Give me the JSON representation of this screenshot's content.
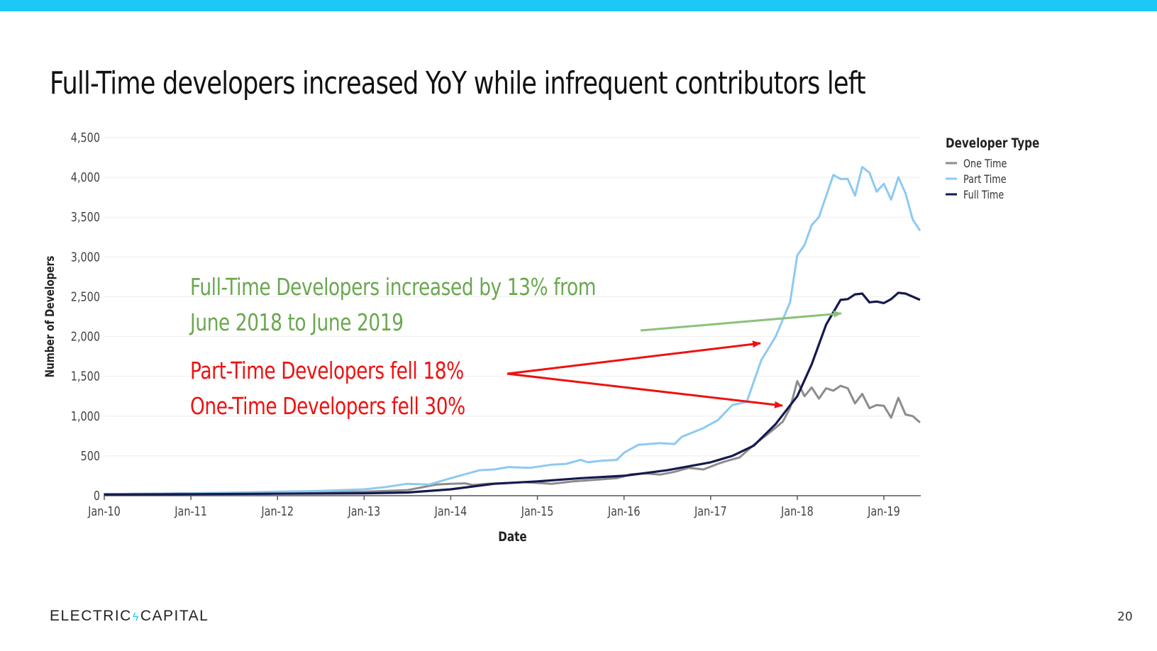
{
  "slide": {
    "title": "Full-Time developers increased YoY while infrequent contributors left",
    "brand": {
      "left": "ELECTRIC",
      "right": "CAPITAL"
    },
    "page_number": "20",
    "accent_color": "#1cc8f6"
  },
  "annotations": {
    "green": {
      "line1": "Full-Time Developers increased by 13% from",
      "line2": "June 2018 to June 2019",
      "color": "#6aa84f"
    },
    "red": {
      "line1": "Part-Time Developers fell 18%",
      "line2": "One-Time Developers fell 30%",
      "color": "#ee1111"
    }
  },
  "chart_data": {
    "type": "line",
    "xlabel": "Date",
    "ylabel": "Number of Developers",
    "xlim": [
      "2010-01",
      "2019-06"
    ],
    "ylim": [
      0,
      4500
    ],
    "y_ticks": [
      "0",
      "500",
      "1,000",
      "1,500",
      "2,000",
      "2,500",
      "3,000",
      "3,500",
      "4,000",
      "4,500"
    ],
    "x_ticks": [
      "Jan-10",
      "Jan-11",
      "Jan-12",
      "Jan-13",
      "Jan-14",
      "Jan-15",
      "Jan-16",
      "Jan-17",
      "Jan-18",
      "Jan-19"
    ],
    "grid": true,
    "legend": {
      "title": "Developer Type",
      "position": "top-right"
    },
    "series": [
      {
        "name": "One Time",
        "color": "#8c8c8c",
        "points": [
          [
            "2010-01",
            20
          ],
          [
            "2011-01",
            30
          ],
          [
            "2012-01",
            40
          ],
          [
            "2013-01",
            50
          ],
          [
            "2013-07",
            70
          ],
          [
            "2013-11",
            140
          ],
          [
            "2014-01",
            150
          ],
          [
            "2014-03",
            155
          ],
          [
            "2014-04",
            135
          ],
          [
            "2014-06",
            150
          ],
          [
            "2014-09",
            160
          ],
          [
            "2014-11",
            170
          ],
          [
            "2015-01",
            160
          ],
          [
            "2015-03",
            150
          ],
          [
            "2015-06",
            180
          ],
          [
            "2015-09",
            200
          ],
          [
            "2015-12",
            220
          ],
          [
            "2016-02",
            270
          ],
          [
            "2016-04",
            280
          ],
          [
            "2016-06",
            265
          ],
          [
            "2016-08",
            300
          ],
          [
            "2016-10",
            350
          ],
          [
            "2016-12",
            330
          ],
          [
            "2017-02",
            400
          ],
          [
            "2017-03",
            430
          ],
          [
            "2017-05",
            480
          ],
          [
            "2017-07",
            640
          ],
          [
            "2017-09",
            780
          ],
          [
            "2017-11",
            930
          ],
          [
            "2017-12",
            1100
          ],
          [
            "2018-01",
            1440
          ],
          [
            "2018-02",
            1250
          ],
          [
            "2018-03",
            1360
          ],
          [
            "2018-04",
            1220
          ],
          [
            "2018-05",
            1350
          ],
          [
            "2018-06",
            1320
          ],
          [
            "2018-07",
            1380
          ],
          [
            "2018-08",
            1350
          ],
          [
            "2018-09",
            1160
          ],
          [
            "2018-10",
            1280
          ],
          [
            "2018-11",
            1100
          ],
          [
            "2018-12",
            1140
          ],
          [
            "2019-01",
            1130
          ],
          [
            "2019-02",
            980
          ],
          [
            "2019-03",
            1230
          ],
          [
            "2019-04",
            1020
          ],
          [
            "2019-05",
            1000
          ],
          [
            "2019-06",
            920
          ]
        ]
      },
      {
        "name": "Part Time",
        "color": "#8ec9f2",
        "points": [
          [
            "2010-01",
            20
          ],
          [
            "2011-01",
            30
          ],
          [
            "2012-01",
            50
          ],
          [
            "2012-07",
            60
          ],
          [
            "2013-01",
            80
          ],
          [
            "2013-04",
            110
          ],
          [
            "2013-07",
            150
          ],
          [
            "2013-10",
            140
          ],
          [
            "2014-01",
            220
          ],
          [
            "2014-03",
            270
          ],
          [
            "2014-05",
            320
          ],
          [
            "2014-07",
            330
          ],
          [
            "2014-09",
            360
          ],
          [
            "2014-12",
            350
          ],
          [
            "2015-03",
            390
          ],
          [
            "2015-05",
            400
          ],
          [
            "2015-07",
            450
          ],
          [
            "2015-08",
            420
          ],
          [
            "2015-10",
            440
          ],
          [
            "2015-12",
            450
          ],
          [
            "2016-01",
            540
          ],
          [
            "2016-03",
            640
          ],
          [
            "2016-06",
            660
          ],
          [
            "2016-08",
            650
          ],
          [
            "2016-09",
            740
          ],
          [
            "2016-12",
            850
          ],
          [
            "2017-02",
            950
          ],
          [
            "2017-04",
            1140
          ],
          [
            "2017-06",
            1180
          ],
          [
            "2017-08",
            1700
          ],
          [
            "2017-10",
            2000
          ],
          [
            "2017-12",
            2430
          ],
          [
            "2018-01",
            3020
          ],
          [
            "2018-02",
            3150
          ],
          [
            "2018-03",
            3400
          ],
          [
            "2018-04",
            3500
          ],
          [
            "2018-06",
            4030
          ],
          [
            "2018-07",
            3980
          ],
          [
            "2018-08",
            3980
          ],
          [
            "2018-09",
            3770
          ],
          [
            "2018-10",
            4130
          ],
          [
            "2018-11",
            4060
          ],
          [
            "2018-12",
            3820
          ],
          [
            "2019-01",
            3920
          ],
          [
            "2019-02",
            3720
          ],
          [
            "2019-03",
            4000
          ],
          [
            "2019-04",
            3800
          ],
          [
            "2019-05",
            3470
          ],
          [
            "2019-06",
            3330
          ]
        ]
      },
      {
        "name": "Full Time",
        "color": "#141a4e",
        "points": [
          [
            "2010-01",
            15
          ],
          [
            "2011-01",
            20
          ],
          [
            "2012-01",
            25
          ],
          [
            "2013-01",
            30
          ],
          [
            "2013-07",
            40
          ],
          [
            "2014-01",
            80
          ],
          [
            "2014-07",
            150
          ],
          [
            "2015-01",
            180
          ],
          [
            "2015-07",
            220
          ],
          [
            "2016-01",
            250
          ],
          [
            "2016-07",
            320
          ],
          [
            "2017-01",
            420
          ],
          [
            "2017-04",
            500
          ],
          [
            "2017-07",
            630
          ],
          [
            "2017-10",
            900
          ],
          [
            "2018-01",
            1250
          ],
          [
            "2018-03",
            1650
          ],
          [
            "2018-05",
            2150
          ],
          [
            "2018-07",
            2460
          ],
          [
            "2018-08",
            2470
          ],
          [
            "2018-09",
            2530
          ],
          [
            "2018-10",
            2540
          ],
          [
            "2018-11",
            2430
          ],
          [
            "2018-12",
            2440
          ],
          [
            "2019-01",
            2420
          ],
          [
            "2019-02",
            2470
          ],
          [
            "2019-03",
            2550
          ],
          [
            "2019-04",
            2540
          ],
          [
            "2019-05",
            2500
          ],
          [
            "2019-06",
            2460
          ]
        ]
      }
    ]
  }
}
